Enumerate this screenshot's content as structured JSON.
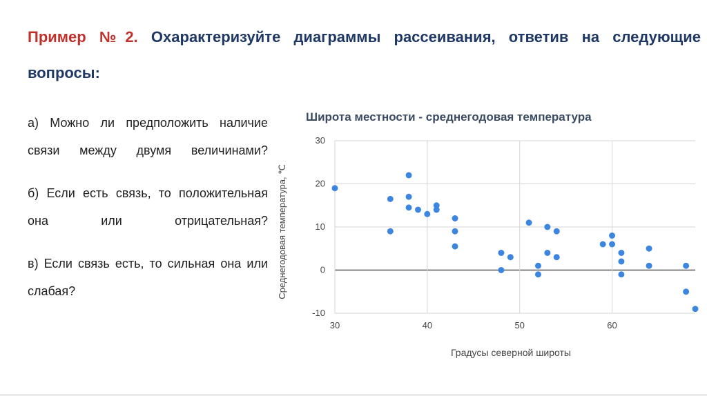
{
  "heading": {
    "prefix": "Пример №2.",
    "text": " Охарактеризуйте диаграммы рассеивания, ответив на следующие вопросы:"
  },
  "questions": [
    "а) Можно ли предположить наличие связи между двумя величинами?",
    "б) Если есть связь, то положительная она или отрицательная?",
    "в) Если связь есть, то сильная она или слабая?"
  ],
  "colors": {
    "accent_red": "#c0302c",
    "heading_blue": "#1f3864",
    "points": "#3d86e0"
  },
  "chart_data": {
    "type": "scatter",
    "title": "Широта местности - среднегодовая температура",
    "xlabel": "Градусы северной широты",
    "ylabel": "Среднегодовая температура, ℃",
    "xlim": [
      30,
      69
    ],
    "ylim": [
      -10,
      30
    ],
    "xticks": [
      30,
      40,
      50,
      60
    ],
    "yticks": [
      -10,
      0,
      10,
      20,
      30
    ],
    "grid": true,
    "series": [
      {
        "points": [
          [
            30,
            19
          ],
          [
            36,
            16.5
          ],
          [
            36,
            9
          ],
          [
            38,
            22
          ],
          [
            38,
            17
          ],
          [
            38,
            14.5
          ],
          [
            39,
            14
          ],
          [
            40,
            13
          ],
          [
            41,
            15
          ],
          [
            41,
            14
          ],
          [
            43,
            12
          ],
          [
            43,
            9
          ],
          [
            43,
            5.5
          ],
          [
            48,
            4
          ],
          [
            48,
            0
          ],
          [
            49,
            3
          ],
          [
            51,
            11
          ],
          [
            52,
            1
          ],
          [
            52,
            -1
          ],
          [
            53,
            10
          ],
          [
            53,
            4
          ],
          [
            54,
            9
          ],
          [
            54,
            3
          ],
          [
            59,
            6
          ],
          [
            60,
            8
          ],
          [
            60,
            6
          ],
          [
            61,
            4
          ],
          [
            61,
            2
          ],
          [
            61,
            -1
          ],
          [
            64,
            5
          ],
          [
            64,
            1
          ],
          [
            68,
            1
          ],
          [
            68,
            -5
          ],
          [
            69,
            -9
          ]
        ]
      }
    ]
  }
}
